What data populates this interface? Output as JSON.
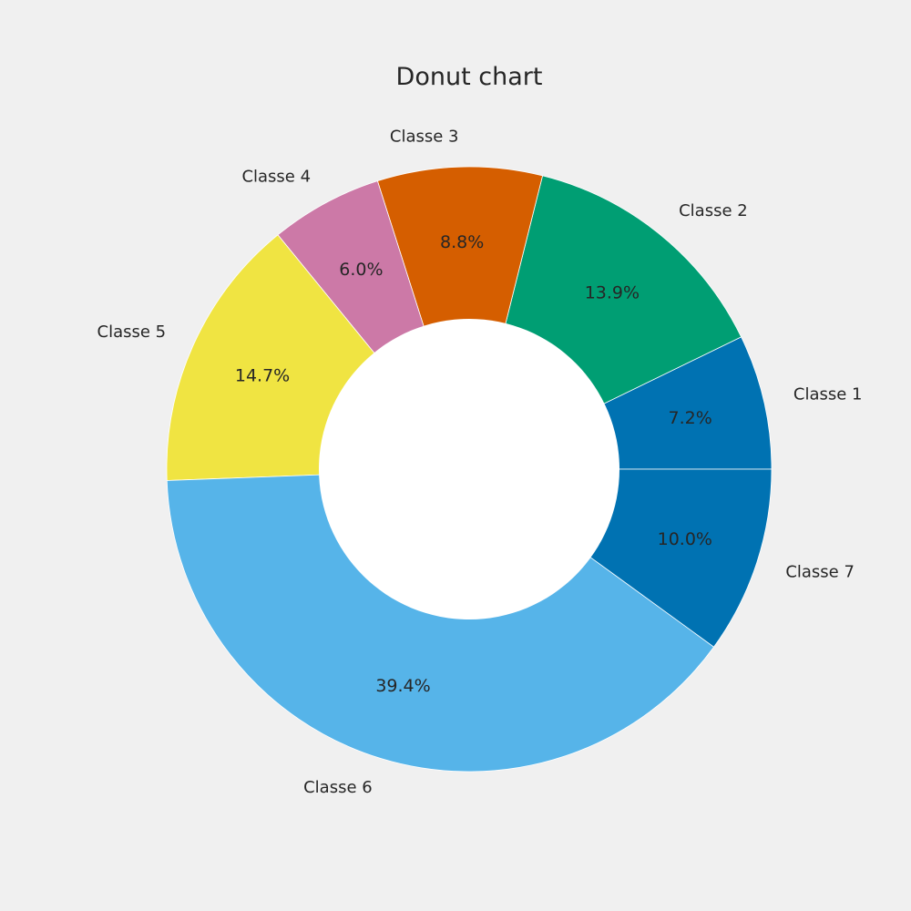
{
  "chart_data": {
    "type": "pie",
    "variant": "donut",
    "title": "Donut chart",
    "start_angle_deg": 0,
    "direction": "counterclockwise",
    "legend": "none",
    "categories": [
      "Classe 1",
      "Classe 2",
      "Classe 3",
      "Classe 4",
      "Classe 5",
      "Classe 6",
      "Classe 7"
    ],
    "values": [
      7.2,
      13.9,
      8.8,
      6.0,
      14.7,
      39.4,
      10.0
    ],
    "percent_labels": [
      "7.2%",
      "13.9%",
      "8.8%",
      "6.0%",
      "14.7%",
      "39.4%",
      "10.0%"
    ],
    "colors": [
      "#0072b2",
      "#009e73",
      "#d55e00",
      "#cc79a7",
      "#f0e442",
      "#56b4e9",
      "#0072b2"
    ],
    "edge_color": "#ffffff",
    "center_color": "#ffffff",
    "background": "#f0f0f0"
  }
}
